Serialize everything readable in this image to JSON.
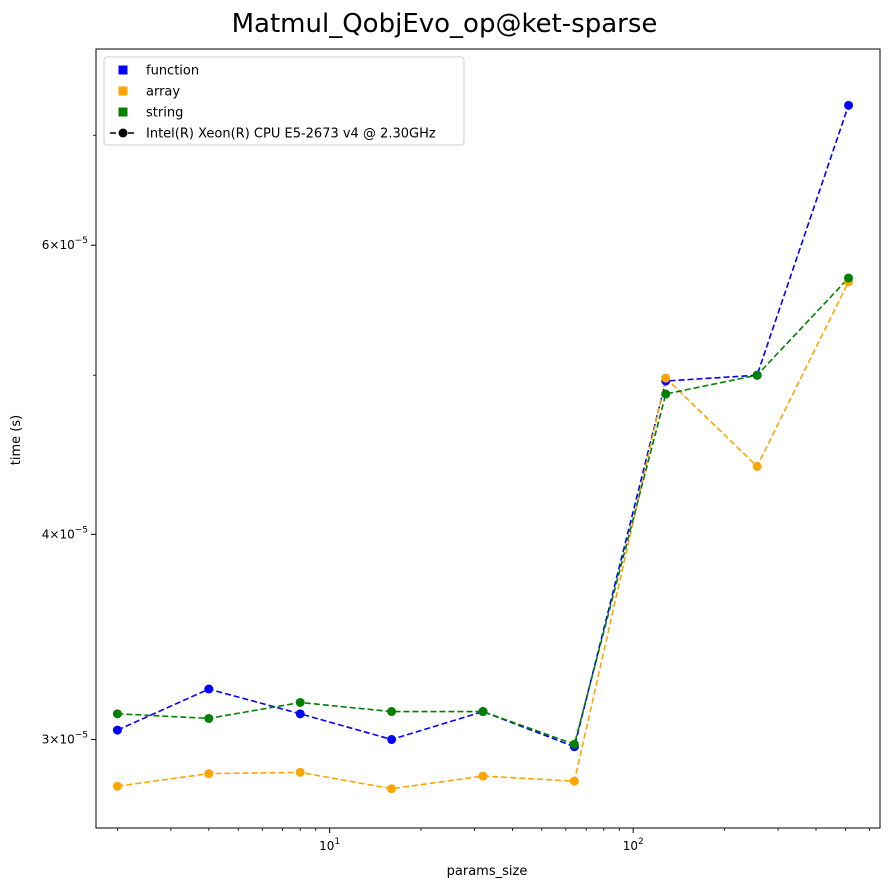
{
  "chart_data": {
    "type": "line",
    "title": "Matmul_QobjEvo_op@ket-sparse",
    "xlabel": "params_size",
    "ylabel": "time (s)",
    "xscale": "log",
    "yscale": "log",
    "xlim": [
      1.7,
      650
    ],
    "ylim": [
      2.65e-05,
      7.9e-05
    ],
    "x": [
      2,
      4,
      8,
      16,
      32,
      64,
      128,
      256,
      512
    ],
    "x_ticks": [
      {
        "value": 10,
        "base": "10",
        "exp": "1"
      },
      {
        "value": 100,
        "base": "10",
        "exp": "2"
      }
    ],
    "y_ticks": [
      {
        "value": 3e-05,
        "mant": "3×10",
        "exp": "−5"
      },
      {
        "value": 4e-05,
        "mant": "4×10",
        "exp": "−5"
      },
      {
        "value": 6e-05,
        "mant": "6×10",
        "exp": "−5"
      }
    ],
    "y_minor_ticks": [
      5e-05,
      7e-05
    ],
    "series": [
      {
        "name": "function",
        "color": "#0000ff",
        "values": [
          3.04e-05,
          3.22e-05,
          3.11e-05,
          3e-05,
          3.12e-05,
          2.97e-05,
          4.96e-05,
          5e-05,
          7.3e-05
        ]
      },
      {
        "name": "array",
        "color": "#ffa500",
        "values": [
          2.81e-05,
          2.86e-05,
          2.865e-05,
          2.8e-05,
          2.85e-05,
          2.83e-05,
          4.98e-05,
          4.4e-05,
          5.7e-05
        ]
      },
      {
        "name": "string",
        "color": "#008000",
        "values": [
          3.11e-05,
          3.09e-05,
          3.16e-05,
          3.12e-05,
          3.12e-05,
          2.98e-05,
          4.87e-05,
          5e-05,
          5.73e-05
        ]
      }
    ],
    "legend": {
      "position": "top-left",
      "entries": [
        {
          "label": "function",
          "color": "#0000ff",
          "style": "square"
        },
        {
          "label": "array",
          "color": "#ffa500",
          "style": "square"
        },
        {
          "label": "string",
          "color": "#008000",
          "style": "square"
        },
        {
          "label": "Intel(R) Xeon(R) CPU E5-2673 v4 @ 2.30GHz",
          "color": "#000000",
          "style": "dashed-dot"
        }
      ]
    }
  }
}
